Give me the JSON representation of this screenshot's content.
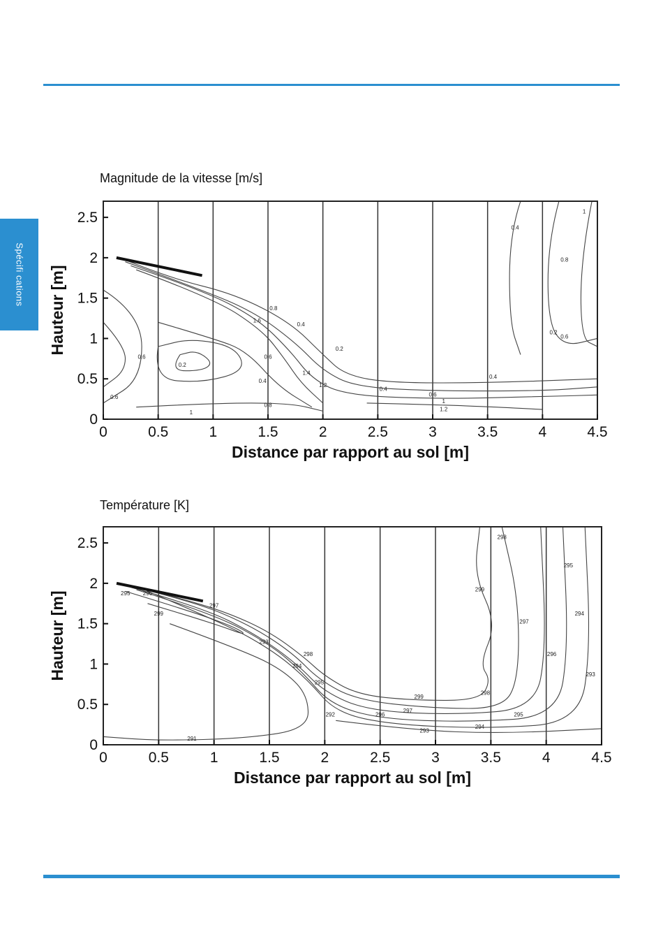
{
  "side_tab": {
    "label": "Spécifi cations"
  },
  "chart_data": [
    {
      "type": "contour",
      "title": "Magnitude de la vitesse [m/s]",
      "xlabel": "Distance par rapport au sol [m]",
      "ylabel": "Hauteur [m]",
      "xlim": [
        0,
        4.5
      ],
      "ylim": [
        0,
        2.7
      ],
      "xticks": [
        "0",
        "0.5",
        "1",
        "1.5",
        "2",
        "2.5",
        "3",
        "3.5",
        "4",
        "4.5"
      ],
      "yticks": [
        "0",
        "0.5",
        "1",
        "1.5",
        "2",
        "2.5"
      ],
      "contour_labels": [
        {
          "text": "0.2",
          "x": 0.72,
          "y": 0.65
        },
        {
          "text": "0.4",
          "x": 1.45,
          "y": 0.45
        },
        {
          "text": "0.6",
          "x": 1.5,
          "y": 0.75
        },
        {
          "text": "0.8",
          "x": 1.5,
          "y": 0.15
        },
        {
          "text": "1",
          "x": 0.8,
          "y": 0.06
        },
        {
          "text": "1.4",
          "x": 1.85,
          "y": 0.55
        },
        {
          "text": "1.2",
          "x": 2.0,
          "y": 0.4
        },
        {
          "text": "1.6",
          "x": 1.4,
          "y": 1.2
        },
        {
          "text": "0.8",
          "x": 1.55,
          "y": 1.35
        },
        {
          "text": "0.4",
          "x": 1.8,
          "y": 1.15
        },
        {
          "text": "0.2",
          "x": 2.15,
          "y": 0.85
        },
        {
          "text": "0.4",
          "x": 2.55,
          "y": 0.35
        },
        {
          "text": "0.4",
          "x": 3.55,
          "y": 0.5
        },
        {
          "text": "0.6",
          "x": 3.0,
          "y": 0.28
        },
        {
          "text": "1",
          "x": 3.1,
          "y": 0.2
        },
        {
          "text": "1.2",
          "x": 3.1,
          "y": 0.1
        },
        {
          "text": "0.6",
          "x": 0.35,
          "y": 0.75
        },
        {
          "text": "0.6",
          "x": 0.1,
          "y": 0.25
        },
        {
          "text": "0.2",
          "x": 4.1,
          "y": 1.05
        },
        {
          "text": "0.4",
          "x": 3.75,
          "y": 2.35
        },
        {
          "text": "0.6",
          "x": 4.2,
          "y": 1.0
        },
        {
          "text": "0.8",
          "x": 4.2,
          "y": 1.95
        },
        {
          "text": "1",
          "x": 4.38,
          "y": 2.55
        }
      ]
    },
    {
      "type": "contour",
      "title": "Température [K]",
      "xlabel": "Distance par rapport au sol [m]",
      "ylabel": "Hauteur [m]",
      "xlim": [
        0,
        4.5
      ],
      "ylim": [
        0,
        2.7
      ],
      "xticks": [
        "0",
        "0.5",
        "1",
        "1.5",
        "2",
        "2.5",
        "3",
        "3.5",
        "4",
        "4.5"
      ],
      "yticks": [
        "0",
        "0.5",
        "1",
        "1.5",
        "2",
        "2.5"
      ],
      "contour_labels": [
        {
          "text": "298",
          "x": 3.6,
          "y": 2.55
        },
        {
          "text": "295",
          "x": 4.2,
          "y": 2.2
        },
        {
          "text": "299",
          "x": 3.4,
          "y": 1.9
        },
        {
          "text": "297",
          "x": 3.8,
          "y": 1.5
        },
        {
          "text": "294",
          "x": 4.3,
          "y": 1.6
        },
        {
          "text": "296",
          "x": 4.05,
          "y": 1.1
        },
        {
          "text": "293",
          "x": 4.4,
          "y": 0.85
        },
        {
          "text": "299",
          "x": 2.85,
          "y": 0.57
        },
        {
          "text": "298",
          "x": 3.45,
          "y": 0.62
        },
        {
          "text": "297",
          "x": 2.75,
          "y": 0.4
        },
        {
          "text": "296",
          "x": 2.5,
          "y": 0.35
        },
        {
          "text": "295",
          "x": 3.75,
          "y": 0.35
        },
        {
          "text": "294",
          "x": 3.4,
          "y": 0.2
        },
        {
          "text": "293",
          "x": 2.9,
          "y": 0.15
        },
        {
          "text": "298",
          "x": 1.85,
          "y": 1.1
        },
        {
          "text": "294",
          "x": 1.75,
          "y": 0.95
        },
        {
          "text": "295",
          "x": 1.95,
          "y": 0.75
        },
        {
          "text": "292",
          "x": 2.05,
          "y": 0.35
        },
        {
          "text": "293",
          "x": 1.45,
          "y": 1.25
        },
        {
          "text": "297",
          "x": 1.0,
          "y": 1.7
        },
        {
          "text": "296",
          "x": 0.4,
          "y": 1.85
        },
        {
          "text": "295",
          "x": 0.2,
          "y": 1.85
        },
        {
          "text": "299",
          "x": 0.5,
          "y": 1.6
        },
        {
          "text": "291",
          "x": 0.8,
          "y": 0.05
        }
      ]
    }
  ]
}
